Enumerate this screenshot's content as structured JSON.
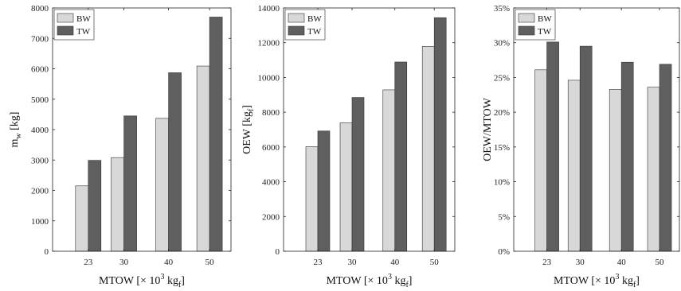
{
  "colors": {
    "BW": "#d8d8d8",
    "TW": "#5f5f5f"
  },
  "chart_data": [
    {
      "type": "bar",
      "categories": [
        "23",
        "30",
        "40",
        "50"
      ],
      "series": [
        {
          "name": "BW",
          "values": [
            2150,
            3080,
            4370,
            6090
          ]
        },
        {
          "name": "TW",
          "values": [
            2990,
            4450,
            5870,
            7700
          ]
        }
      ],
      "ylim": [
        0,
        8000
      ],
      "yticks": [
        0,
        1000,
        2000,
        3000,
        4000,
        5000,
        6000,
        7000,
        8000
      ],
      "ytick_labels": [
        "0",
        "1000",
        "2000",
        "3000",
        "4000",
        "5000",
        "6000",
        "7000",
        "8000"
      ],
      "ylabel_main": "m",
      "ylabel_sub": "w",
      "ylabel_tail": " [kg]",
      "xlabel_main": "MTOW [× 10",
      "xlabel_sup": "3",
      "xlabel_mid": " kg",
      "xlabel_sub": "f",
      "xlabel_tail": "]",
      "legend": "top-left",
      "grid": false
    },
    {
      "type": "bar",
      "categories": [
        "23",
        "30",
        "40",
        "50"
      ],
      "series": [
        {
          "name": "BW",
          "values": [
            6020,
            7390,
            9290,
            11790
          ]
        },
        {
          "name": "TW",
          "values": [
            6920,
            8850,
            10890,
            13440
          ]
        }
      ],
      "ylim": [
        0,
        14000
      ],
      "yticks": [
        0,
        2000,
        4000,
        6000,
        8000,
        10000,
        12000,
        14000
      ],
      "ytick_labels": [
        "0",
        "2000",
        "4000",
        "6000",
        "8000",
        "10000",
        "12000",
        "14000"
      ],
      "ylabel_main": "OEW [kg",
      "ylabel_sub": "f",
      "ylabel_tail": "]",
      "xlabel_main": "MTOW [× 10",
      "xlabel_sup": "3",
      "xlabel_mid": " kg",
      "xlabel_sub": "f",
      "xlabel_tail": "]",
      "legend": "top-left",
      "grid": false
    },
    {
      "type": "bar",
      "categories": [
        "23",
        "30",
        "40",
        "50"
      ],
      "series": [
        {
          "name": "BW",
          "values": [
            26.1,
            24.6,
            23.3,
            23.6
          ]
        },
        {
          "name": "TW",
          "values": [
            30.1,
            29.5,
            27.2,
            26.9
          ]
        }
      ],
      "ylim": [
        0,
        35
      ],
      "yticks": [
        0,
        5,
        10,
        15,
        20,
        25,
        30,
        35
      ],
      "ytick_labels": [
        "0%",
        "5%",
        "10%",
        "15%",
        "20%",
        "25%",
        "30%",
        "35%"
      ],
      "ylabel_main": "OEW/MTOW",
      "ylabel_sub": "",
      "ylabel_tail": "",
      "xlabel_main": "MTOW [× 10",
      "xlabel_sup": "3",
      "xlabel_mid": " kg",
      "xlabel_sub": "f",
      "xlabel_tail": "]",
      "legend": "top-left",
      "grid": false
    }
  ]
}
